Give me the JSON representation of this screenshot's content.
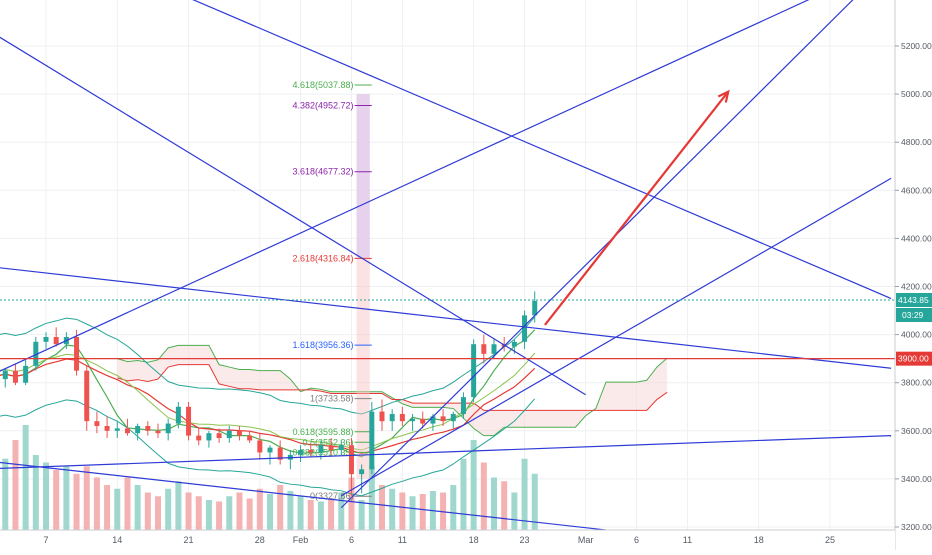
{
  "chart_data": {
    "type": "candlestick",
    "title": "",
    "xlabel": "",
    "ylabel": "",
    "ylim": [
      3200,
      5400
    ],
    "price_axis": {
      "tick_labels": [
        "5200.00",
        "5000.00",
        "4800.00",
        "4600.00",
        "4400.00",
        "4200.00",
        "4000.00",
        "3800.00",
        "3600.00",
        "3400.00",
        "3200.00"
      ],
      "tick_values": [
        5200,
        5000,
        4800,
        4600,
        4400,
        4200,
        4000,
        3800,
        3600,
        3400,
        3200
      ]
    },
    "time_axis": {
      "tick_labels": [
        "7",
        "14",
        "21",
        "28",
        "Feb",
        "6",
        "11",
        "18",
        "23",
        "Mar",
        "6",
        "11",
        "18",
        "25"
      ],
      "tick_days": [
        7,
        14,
        21,
        28,
        32,
        37,
        42,
        49,
        54,
        60,
        65,
        70,
        77,
        84
      ]
    },
    "current_price": {
      "value": 4143.85,
      "label": "4143.85",
      "countdown": "03:29"
    },
    "level_3900": {
      "value": 3900,
      "label": "3900.00"
    },
    "fibonacci": [
      {
        "ratio": "0",
        "label": "0(3327.86)",
        "price": 3327.86
      },
      {
        "ratio": "0.382",
        "label": "0.382(3510.35)",
        "price": 3510.35
      },
      {
        "ratio": "0.5",
        "label": "0.5(3552.36)",
        "price": 3552.36
      },
      {
        "ratio": "0.618",
        "label": "0.618(3595.88)",
        "price": 3595.88
      },
      {
        "ratio": "1",
        "label": "1(3733.58)",
        "price": 3733.58
      },
      {
        "ratio": "1.618",
        "label": "1.618(3956.36)",
        "price": 3956.36
      },
      {
        "ratio": "2.618",
        "label": "2.618(4316.84)",
        "price": 4316.84
      },
      {
        "ratio": "3.618",
        "label": "3.618(4677.32)",
        "price": 4677.32
      },
      {
        "ratio": "4.382",
        "label": "4.382(4952.72)",
        "price": 4952.72
      },
      {
        "ratio": "4.618",
        "label": "4.618(5037.88)",
        "price": 5037.88
      }
    ],
    "candles": [
      [
        1,
        3790,
        3870,
        3760,
        3840
      ],
      [
        2,
        3840,
        3890,
        3800,
        3815
      ],
      [
        3,
        3815,
        3860,
        3780,
        3850
      ],
      [
        4,
        3850,
        3880,
        3790,
        3800
      ],
      [
        5,
        3800,
        3900,
        3790,
        3870
      ],
      [
        6,
        3870,
        3990,
        3850,
        3970
      ],
      [
        7,
        3970,
        4010,
        3940,
        3990
      ],
      [
        8,
        3990,
        4030,
        3950,
        3960
      ],
      [
        9,
        3960,
        4010,
        3940,
        3990
      ],
      [
        10,
        3990,
        4020,
        3830,
        3850
      ],
      [
        11,
        3850,
        3870,
        3600,
        3640
      ],
      [
        12,
        3640,
        3680,
        3590,
        3620
      ],
      [
        13,
        3620,
        3660,
        3570,
        3600
      ],
      [
        14,
        3600,
        3640,
        3570,
        3610
      ],
      [
        15,
        3610,
        3650,
        3580,
        3590
      ],
      [
        16,
        3590,
        3630,
        3560,
        3620
      ],
      [
        17,
        3620,
        3640,
        3580,
        3600
      ],
      [
        18,
        3600,
        3630,
        3570,
        3590
      ],
      [
        19,
        3590,
        3650,
        3560,
        3630
      ],
      [
        20,
        3630,
        3720,
        3610,
        3700
      ],
      [
        21,
        3700,
        3720,
        3560,
        3580
      ],
      [
        22,
        3580,
        3610,
        3540,
        3560
      ],
      [
        23,
        3560,
        3600,
        3530,
        3590
      ],
      [
        24,
        3590,
        3610,
        3550,
        3570
      ],
      [
        25,
        3570,
        3620,
        3550,
        3600
      ],
      [
        26,
        3600,
        3620,
        3560,
        3580
      ],
      [
        27,
        3580,
        3600,
        3550,
        3560
      ],
      [
        28,
        3560,
        3590,
        3480,
        3510
      ],
      [
        29,
        3510,
        3540,
        3460,
        3530
      ],
      [
        30,
        3530,
        3560,
        3460,
        3480
      ],
      [
        31,
        3480,
        3520,
        3440,
        3500
      ],
      [
        32,
        3500,
        3540,
        3470,
        3520
      ],
      [
        33,
        3520,
        3550,
        3490,
        3510
      ],
      [
        34,
        3510,
        3560,
        3480,
        3540
      ],
      [
        35,
        3540,
        3570,
        3500,
        3520
      ],
      [
        36,
        3520,
        3560,
        3500,
        3540
      ],
      [
        37,
        3540,
        3570,
        3330,
        3420
      ],
      [
        38,
        3420,
        3460,
        3340,
        3440
      ],
      [
        39,
        3440,
        3720,
        3420,
        3680
      ],
      [
        40,
        3680,
        3730,
        3600,
        3640
      ],
      [
        41,
        3640,
        3690,
        3600,
        3670
      ],
      [
        42,
        3670,
        3700,
        3620,
        3640
      ],
      [
        43,
        3640,
        3670,
        3600,
        3650
      ],
      [
        44,
        3650,
        3680,
        3610,
        3630
      ],
      [
        45,
        3630,
        3670,
        3600,
        3660
      ],
      [
        46,
        3660,
        3690,
        3620,
        3640
      ],
      [
        47,
        3640,
        3680,
        3610,
        3670
      ],
      [
        48,
        3670,
        3760,
        3650,
        3740
      ],
      [
        49,
        3740,
        3980,
        3720,
        3960
      ],
      [
        50,
        3960,
        4000,
        3880,
        3920
      ],
      [
        51,
        3920,
        3980,
        3900,
        3960
      ],
      [
        52,
        3960,
        3990,
        3930,
        3950
      ],
      [
        53,
        3950,
        3980,
        3920,
        3970
      ],
      [
        54,
        3970,
        4100,
        3940,
        4080
      ],
      [
        55,
        4080,
        4180,
        4050,
        4140
      ]
    ],
    "volumes": [
      [
        1,
        130
      ],
      [
        2,
        110
      ],
      [
        3,
        95
      ],
      [
        4,
        120
      ],
      [
        5,
        140
      ],
      [
        6,
        100
      ],
      [
        7,
        90
      ],
      [
        8,
        80
      ],
      [
        9,
        85
      ],
      [
        10,
        75
      ],
      [
        11,
        85
      ],
      [
        12,
        70
      ],
      [
        13,
        60
      ],
      [
        14,
        55
      ],
      [
        15,
        70
      ],
      [
        16,
        60
      ],
      [
        17,
        50
      ],
      [
        18,
        45
      ],
      [
        19,
        55
      ],
      [
        20,
        65
      ],
      [
        21,
        50
      ],
      [
        22,
        45
      ],
      [
        23,
        40
      ],
      [
        24,
        38
      ],
      [
        25,
        45
      ],
      [
        26,
        50
      ],
      [
        27,
        42
      ],
      [
        28,
        55
      ],
      [
        29,
        48
      ],
      [
        30,
        60
      ],
      [
        31,
        52
      ],
      [
        32,
        45
      ],
      [
        33,
        40
      ],
      [
        34,
        38
      ],
      [
        35,
        42
      ],
      [
        36,
        50
      ],
      [
        37,
        70
      ],
      [
        38,
        40
      ],
      [
        39,
        85
      ],
      [
        40,
        60
      ],
      [
        41,
        55
      ],
      [
        42,
        50
      ],
      [
        43,
        45
      ],
      [
        44,
        48
      ],
      [
        45,
        52
      ],
      [
        46,
        50
      ],
      [
        47,
        60
      ],
      [
        48,
        95
      ],
      [
        49,
        120
      ],
      [
        50,
        90
      ],
      [
        51,
        70
      ],
      [
        52,
        65
      ],
      [
        53,
        50
      ],
      [
        54,
        95
      ],
      [
        55,
        75
      ]
    ]
  }
}
